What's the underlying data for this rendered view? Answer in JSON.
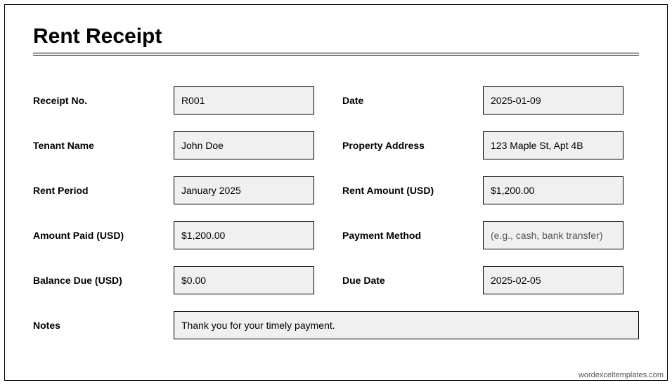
{
  "title": "Rent Receipt",
  "labels": {
    "receipt_no": "Receipt No.",
    "date": "Date",
    "tenant_name": "Tenant Name",
    "property_address": "Property Address",
    "rent_period": "Rent Period",
    "rent_amount": "Rent Amount (USD)",
    "amount_paid": "Amount Paid (USD)",
    "payment_method": "Payment Method",
    "balance_due": "Balance Due (USD)",
    "due_date": "Due Date",
    "notes": "Notes"
  },
  "values": {
    "receipt_no": "R001",
    "date": "2025-01-09",
    "tenant_name": "John Doe",
    "property_address": "123 Maple St, Apt 4B",
    "rent_period": "January 2025",
    "rent_amount": "$1,200.00",
    "amount_paid": "$1,200.00",
    "payment_method": "(e.g., cash, bank transfer)",
    "balance_due": "$0.00",
    "due_date": "2025-02-05",
    "notes": "Thank you for your timely payment."
  },
  "footer": "wordexceltemplates.com",
  "style": {
    "field_bg": "#f0f0f0",
    "border_color": "#000000",
    "placeholder_color": "#555555"
  }
}
